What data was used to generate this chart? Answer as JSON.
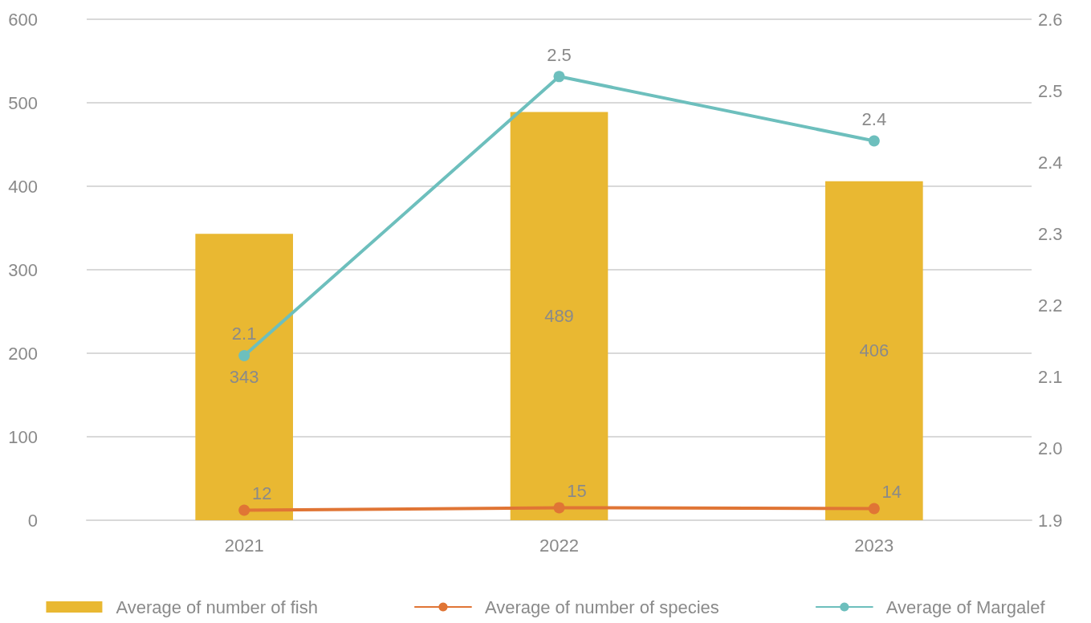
{
  "chart_data": {
    "type": "bar",
    "categories": [
      "2021",
      "2022",
      "2023"
    ],
    "series": [
      {
        "name": "Average of number of fish",
        "color": "#e9b832",
        "values": [
          343,
          489,
          406
        ],
        "value_labels": [
          "343",
          "489",
          "406"
        ]
      },
      {
        "name": "Average of number of species",
        "type": "line",
        "color": "#e07535",
        "values": [
          12,
          15,
          14
        ],
        "value_labels": [
          "12",
          "15",
          "14"
        ]
      },
      {
        "name": "Average of Margalef",
        "type": "line",
        "axis": "y2",
        "color": "#6dbfbd",
        "values": [
          2.13,
          2.52,
          2.43
        ],
        "value_labels": [
          "2.1",
          "2.5",
          "2.4"
        ]
      }
    ],
    "ylim": [
      0,
      600
    ],
    "yticks": [
      0,
      100,
      200,
      300,
      400,
      500,
      600
    ],
    "y2lim": [
      1.9,
      2.6
    ],
    "y2ticks": [
      1.9,
      {
        "value": 2,
        "label": "2.0"
      },
      2.1,
      2.2,
      2.3,
      2.4,
      2.5,
      2.6
    ],
    "grid": "y",
    "legend": "bottom",
    "marker": "circle",
    "line_style": "solid"
  }
}
